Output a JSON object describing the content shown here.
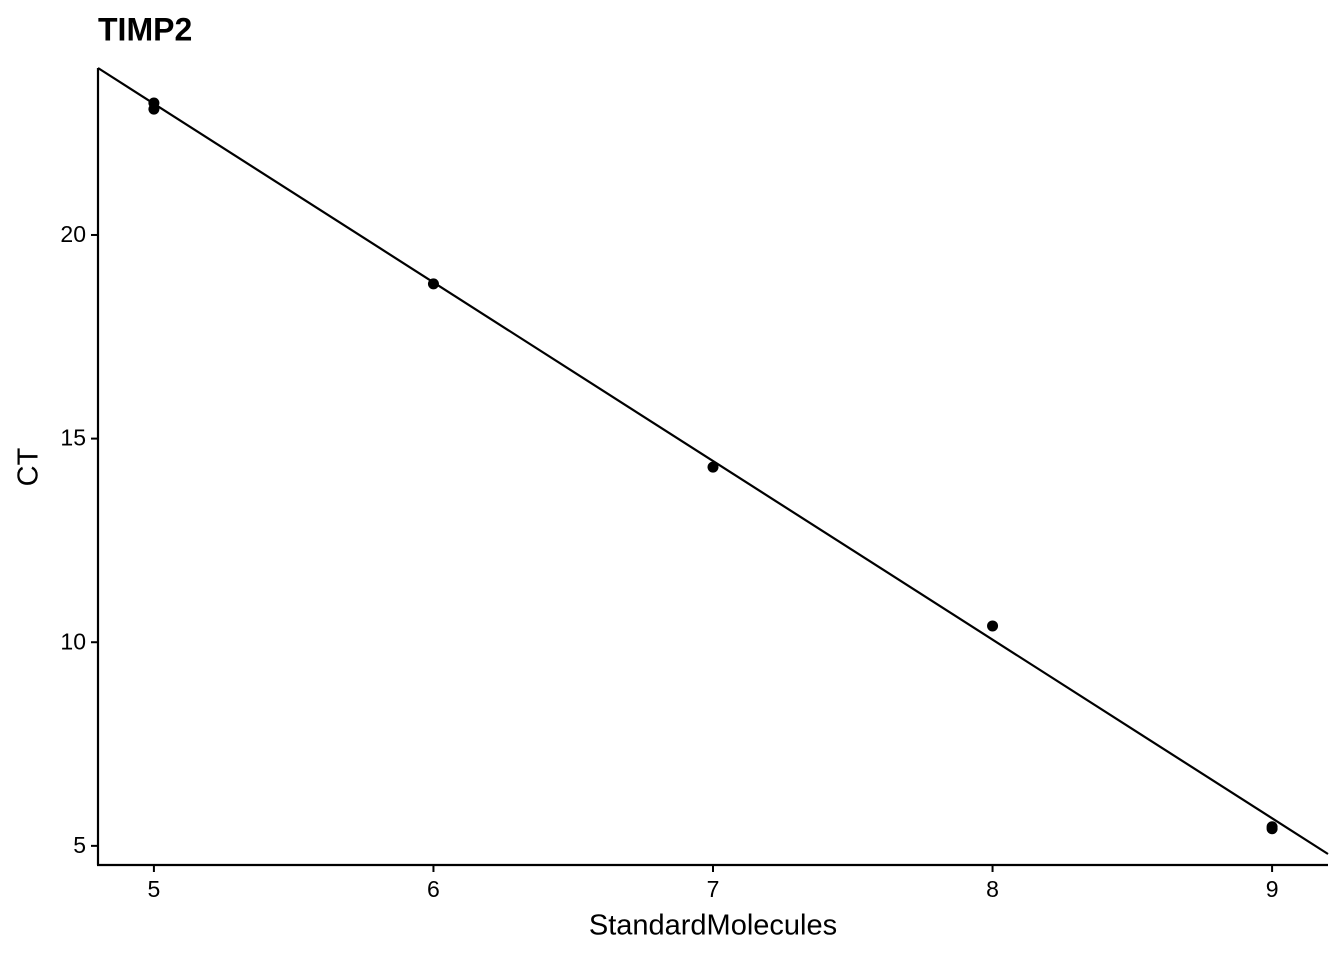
{
  "chart_data": {
    "type": "scatter",
    "title": "TIMP2",
    "x_label": "StandardMolecules",
    "y_label": "CT",
    "x": [
      5,
      5,
      6,
      7,
      8,
      9,
      9
    ],
    "values": [
      23.24,
      23.09,
      18.8,
      14.3,
      10.4,
      5.47,
      5.42
    ],
    "color": "#000000",
    "fit": {
      "x": [
        4.8,
        9.2
      ],
      "values": [
        24.1,
        4.8
      ],
      "color": "#000000"
    },
    "xlim": [
      4.8,
      9.2
    ],
    "ylim": [
      4.53,
      24.1
    ],
    "xticks": [
      5,
      6,
      7,
      8,
      9
    ],
    "yticks": [
      5,
      10,
      15,
      20
    ],
    "grid": false
  }
}
